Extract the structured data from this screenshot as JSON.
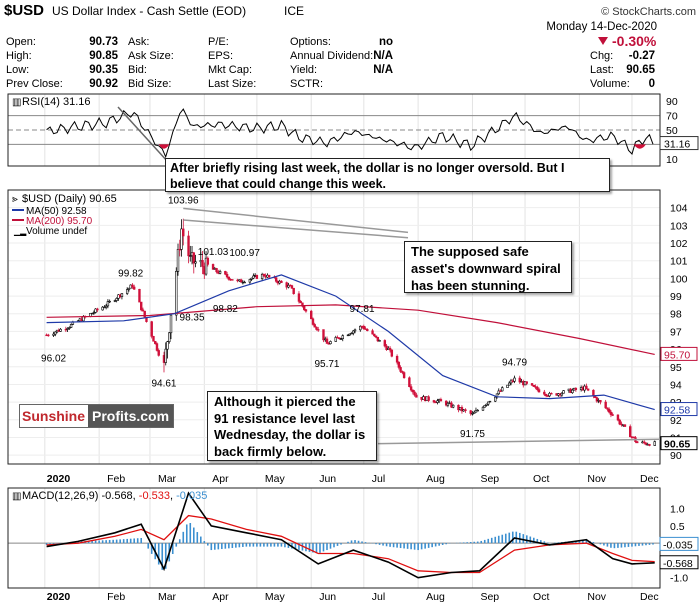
{
  "header": {
    "symbol": "$USD",
    "name": "US Dollar Index - Cash Settle (EOD)",
    "exchange": "ICE",
    "source": "© StockCharts.com",
    "date": "Monday 14-Dec-2020",
    "change_pct": "-0.30%",
    "arrow_icon": "down-triangle-icon"
  },
  "quote": {
    "col1": [
      [
        "Open:",
        "90.73"
      ],
      [
        "High:",
        "90.85"
      ],
      [
        "Low:",
        "90.35"
      ],
      [
        "Prev Close:",
        "90.92"
      ]
    ],
    "col2": [
      [
        "Ask:",
        ""
      ],
      [
        "Ask Size:",
        ""
      ],
      [
        "Bid:",
        ""
      ],
      [
        "Bid Size:",
        ""
      ]
    ],
    "col3": [
      [
        "P/E:",
        ""
      ],
      [
        "EPS:",
        ""
      ],
      [
        "Mkt Cap:",
        ""
      ],
      [
        "Last Size:",
        ""
      ]
    ],
    "col4": [
      [
        "Options:",
        "no"
      ],
      [
        "Annual Dividend:",
        "N/A"
      ],
      [
        "Yield:",
        "N/A"
      ],
      [
        "SCTR:",
        ""
      ]
    ],
    "col5": [
      [
        "Chg:",
        "-0.27"
      ],
      [
        "Last:",
        "90.65"
      ],
      [
        "Volume:",
        "0"
      ]
    ]
  },
  "colors": {
    "up": "#000000",
    "down": "#d0103a",
    "ma50": "#1f3aa8",
    "ma200": "#c0103a",
    "rsi_line": "#000000",
    "macd_line": "#000000",
    "signal_line": "#e01010",
    "hist": "#3b8fd0",
    "brand_red": "#c0282d",
    "brand_dark": "#555555"
  },
  "annotations": {
    "rsi": "After briefly rising last week, the dollar is no longer oversold. But I believe that could change this week.",
    "safe_asset": "The supposed safe asset's downward spiral has been stunning.",
    "resistance": "Although it pierced the 91 resistance level last Wednesday, the dollar is back firmly below."
  },
  "logo": {
    "part1": "Sunshine",
    "part2": "Profits.com"
  },
  "chart_data": [
    {
      "type": "line",
      "panel": "RSI",
      "legend": "RSI(14) 31.16",
      "last_value": "31.16",
      "ylim": [
        0,
        100
      ],
      "yticks": [
        10,
        30,
        50,
        70,
        90
      ],
      "levels": [
        30,
        50,
        70
      ],
      "x": [
        "2020-01-02",
        "2020-01-20",
        "2020-02-05",
        "2020-02-20",
        "2020-03-05",
        "2020-03-10",
        "2020-03-19",
        "2020-03-25",
        "2020-04-10",
        "2020-04-30",
        "2020-05-15",
        "2020-05-25",
        "2020-06-10",
        "2020-06-25",
        "2020-07-10",
        "2020-07-30",
        "2020-08-15",
        "2020-08-31",
        "2020-09-15",
        "2020-09-25",
        "2020-10-10",
        "2020-10-25",
        "2020-11-05",
        "2020-11-20",
        "2020-12-01",
        "2020-12-08",
        "2020-12-14"
      ],
      "values": [
        48,
        55,
        60,
        75,
        30,
        15,
        82,
        55,
        58,
        52,
        56,
        40,
        32,
        48,
        38,
        25,
        42,
        28,
        52,
        70,
        45,
        55,
        35,
        42,
        22,
        40,
        31.16
      ]
    },
    {
      "type": "candlestick",
      "panel": "Price",
      "legend": "$USD (Daily) 90.65",
      "ma50_legend": "MA(50) 92.58",
      "ma200_legend": "MA(200) 95.70",
      "volume_legend": "Volume undef",
      "ylim": [
        89.5,
        105
      ],
      "yticks": [
        90,
        91,
        92,
        93,
        94,
        95,
        96,
        97,
        98,
        99,
        100,
        101,
        102,
        103,
        104
      ],
      "xticks": [
        "2020",
        "Feb",
        "Mar",
        "Apr",
        "May",
        "Jun",
        "Jul",
        "Aug",
        "Sep",
        "Oct",
        "Nov",
        "Dec"
      ],
      "price_labels": [
        {
          "date": "2020-01-06",
          "value": "96.02"
        },
        {
          "date": "2020-02-19",
          "value": "99.82"
        },
        {
          "date": "2020-03-09",
          "value": "94.61"
        },
        {
          "date": "2020-03-20",
          "value": "103.96"
        },
        {
          "date": "2020-03-25",
          "value": "98.35"
        },
        {
          "date": "2020-04-06",
          "value": "101.03"
        },
        {
          "date": "2020-04-13",
          "value": "98.82"
        },
        {
          "date": "2020-04-24",
          "value": "100.97"
        },
        {
          "date": "2020-06-10",
          "value": "95.71"
        },
        {
          "date": "2020-06-30",
          "value": "97.81"
        },
        {
          "date": "2020-09-01",
          "value": "91.75"
        },
        {
          "date": "2020-09-25",
          "value": "94.79"
        }
      ],
      "last_labels": {
        "close": "90.65",
        "ma50": "92.58",
        "ma200": "95.70"
      },
      "close_x": [
        "2020-01-02",
        "2020-01-15",
        "2020-02-05",
        "2020-02-20",
        "2020-03-09",
        "2020-03-19",
        "2020-03-24",
        "2020-04-06",
        "2020-04-20",
        "2020-05-05",
        "2020-05-20",
        "2020-06-10",
        "2020-06-30",
        "2020-07-15",
        "2020-07-31",
        "2020-08-15",
        "2020-09-01",
        "2020-09-25",
        "2020-10-15",
        "2020-11-04",
        "2020-11-20",
        "2020-12-04",
        "2020-12-14"
      ],
      "close": [
        96.8,
        97.3,
        98.5,
        99.6,
        95.0,
        102.8,
        101.0,
        100.5,
        99.8,
        100.2,
        99.5,
        96.3,
        97.3,
        96.0,
        93.3,
        93.0,
        92.3,
        94.3,
        93.4,
        93.8,
        92.3,
        90.7,
        90.65
      ],
      "ma50_x": [
        "2020-01-02",
        "2020-02-15",
        "2020-03-15",
        "2020-04-15",
        "2020-05-15",
        "2020-06-15",
        "2020-07-15",
        "2020-08-15",
        "2020-09-15",
        "2020-10-15",
        "2020-11-15",
        "2020-12-14"
      ],
      "ma50": [
        97.5,
        97.6,
        98.0,
        99.3,
        100.2,
        99.0,
        97.0,
        94.5,
        93.3,
        93.2,
        93.4,
        92.58
      ],
      "ma200_x": [
        "2020-01-02",
        "2020-03-01",
        "2020-05-01",
        "2020-06-15",
        "2020-08-01",
        "2020-09-15",
        "2020-11-01",
        "2020-12-14"
      ],
      "ma200": [
        97.8,
        97.9,
        98.4,
        98.5,
        98.2,
        97.5,
        96.6,
        95.7
      ]
    },
    {
      "type": "line",
      "panel": "MACD",
      "legend_prefix": "MACD(12,26,9)",
      "legend_macd": "-0.568",
      "legend_signal": "-0.533",
      "legend_hist": "-0.035",
      "ylim": [
        -1.3,
        1.6
      ],
      "yticks": [
        -1.0,
        -0.5,
        0.0,
        0.5,
        1.0
      ],
      "x": [
        "2020-01-02",
        "2020-01-20",
        "2020-02-10",
        "2020-02-25",
        "2020-03-09",
        "2020-03-23",
        "2020-04-05",
        "2020-04-25",
        "2020-05-15",
        "2020-06-05",
        "2020-06-25",
        "2020-07-15",
        "2020-08-01",
        "2020-08-20",
        "2020-09-05",
        "2020-09-25",
        "2020-10-15",
        "2020-11-05",
        "2020-11-20",
        "2020-12-01",
        "2020-12-14"
      ],
      "macd": [
        -0.1,
        0.05,
        0.3,
        0.55,
        -0.75,
        1.45,
        0.5,
        0.3,
        0.1,
        -0.6,
        -0.2,
        -0.55,
        -1.0,
        -0.85,
        -0.8,
        0.15,
        -0.05,
        0.1,
        -0.45,
        -0.6,
        -0.568
      ],
      "signal": [
        -0.05,
        0.0,
        0.2,
        0.4,
        0.1,
        0.8,
        0.7,
        0.4,
        0.2,
        -0.3,
        -0.3,
        -0.45,
        -0.8,
        -0.85,
        -0.85,
        -0.2,
        -0.05,
        0.0,
        -0.3,
        -0.5,
        -0.533
      ],
      "hist_labels": {
        "macd": "-0.568",
        "hist": "-0.035"
      }
    }
  ]
}
